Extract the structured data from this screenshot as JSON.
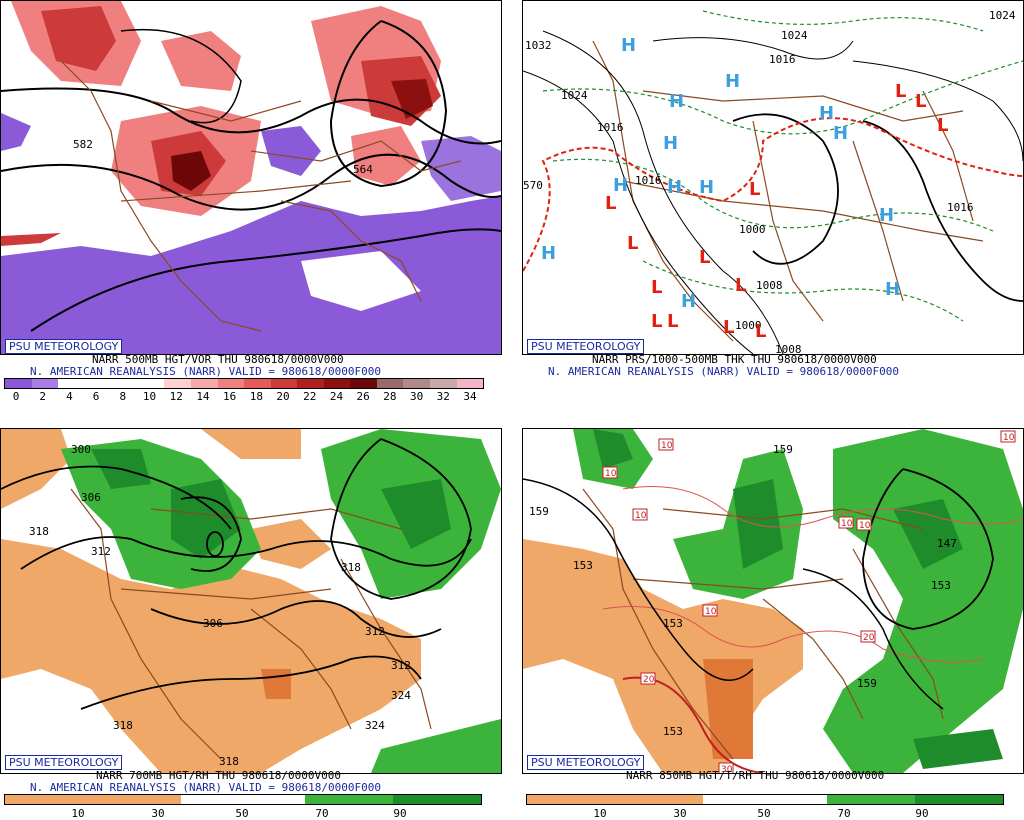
{
  "panels": {
    "tl": {
      "badge": "PSU METEOROLOGY",
      "caption1": "NARR 500MB HGT/VOR THU 980618/0000V000",
      "caption2": "N. AMERICAN REANALYSIS (NARR) VALID = 980618/0000F000",
      "contour_labels": [
        "582",
        "564"
      ],
      "scale_labels": [
        "0",
        "2",
        "4",
        "6",
        "8",
        "10",
        "12",
        "14",
        "16",
        "18",
        "20",
        "22",
        "24",
        "26",
        "28",
        "30",
        "32",
        "34"
      ],
      "scale_colors": [
        "#8a55d8",
        "#a97de6",
        "#ffffff",
        "#ffffff",
        "#ffffff",
        "#ffffff",
        "#ffd0d0",
        "#f7a8a8",
        "#f08080",
        "#e55a5a",
        "#cc3a3a",
        "#b02020",
        "#8c1010",
        "#6e0808",
        "#9a6a6a",
        "#b08a8a",
        "#c8a8a8",
        "#f2b6c8"
      ]
    },
    "tr": {
      "badge": "PSU METEOROLOGY",
      "caption1": "NARR PRS/1000-500MB THK THU 980618/0000V000",
      "caption2": "N. AMERICAN REANALYSIS (NARR) VALID = 980618/0000F000",
      "contour_labels": [
        "1024",
        "1016",
        "1016",
        "1024",
        "1016",
        "1008",
        "1000",
        "1008",
        "1000",
        "1016",
        "570",
        "1024",
        "1032"
      ]
    },
    "bl": {
      "badge": "PSU METEOROLOGY",
      "caption1": "NARR 700MB HGT/RH THU 980618/0000V000",
      "caption2": "N. AMERICAN REANALYSIS (NARR) VALID = 980618/0000F000",
      "contour_labels": [
        "300",
        "306",
        "318",
        "312",
        "306",
        "312",
        "318",
        "318",
        "318",
        "324",
        "324",
        "312"
      ],
      "scale_labels": [
        "10",
        "30",
        "50",
        "70",
        "90"
      ]
    },
    "br": {
      "badge": "PSU METEOROLOGY",
      "caption1": "NARR 850MB HGT/T/RH THU 980618/0000V000",
      "caption2": "",
      "contour_labels": [
        "159",
        "153",
        "159",
        "153",
        "147",
        "153",
        "159",
        "153",
        "10",
        "10",
        "10",
        "10",
        "10",
        "10",
        "20",
        "20",
        "30",
        "10"
      ],
      "scale_labels": [
        "10",
        "30",
        "50",
        "70",
        "90"
      ]
    }
  },
  "colors": {
    "rh_dry": "#f0a868",
    "rh_moist": "#3cb43c",
    "rh_moist_dark": "#1e8c2a",
    "low_symbol": "#e02010",
    "high_symbol": "#3aa0e0",
    "vor_pos": "#e05050",
    "vor_neg": "#8a5ad8",
    "geo": "#8a4a20"
  }
}
